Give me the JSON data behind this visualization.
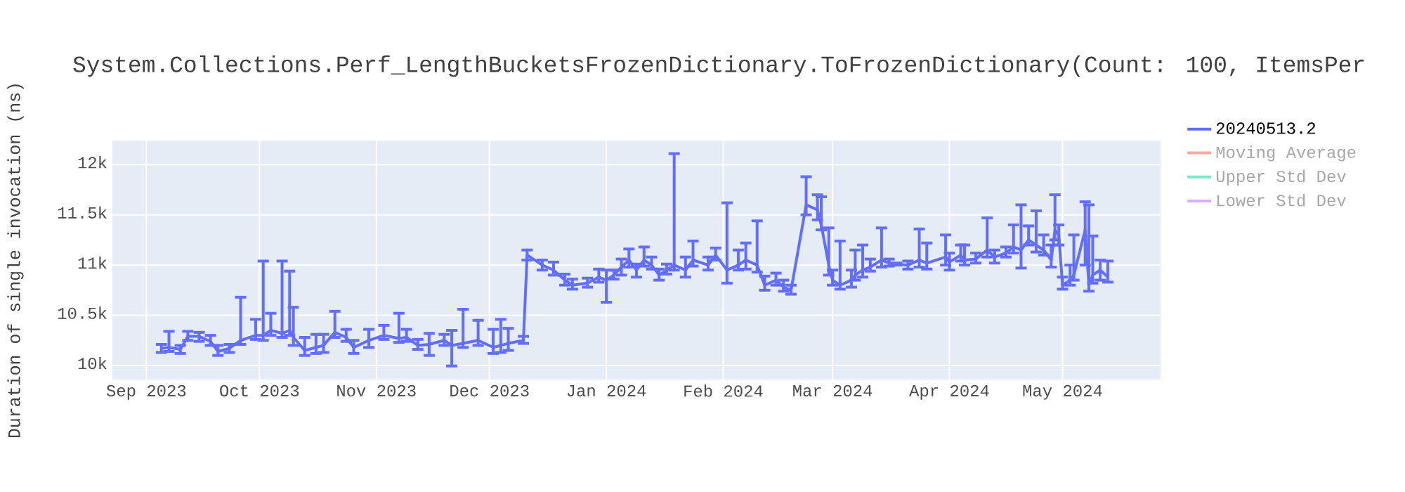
{
  "chart_data": {
    "type": "line",
    "title": "System.Collections.Perf_LengthBucketsFrozenDictionary.ToFrozenDictionary(Count: 100, ItemsPer",
    "ylabel": "Duration of single invocation (ns)",
    "x": [
      "2023-09-05",
      "2023-09-07",
      "2023-09-10",
      "2023-09-12",
      "2023-09-15",
      "2023-09-18",
      "2023-09-20",
      "2023-09-23",
      "2023-09-26",
      "2023-09-30",
      "2023-10-02",
      "2023-10-04",
      "2023-10-07",
      "2023-10-09",
      "2023-10-10",
      "2023-10-13",
      "2023-10-16",
      "2023-10-18",
      "2023-10-21",
      "2023-10-24",
      "2023-10-26",
      "2023-10-30",
      "2023-11-03",
      "2023-11-07",
      "2023-11-09",
      "2023-11-12",
      "2023-11-15",
      "2023-11-19",
      "2023-11-21",
      "2023-11-24",
      "2023-11-28",
      "2023-12-02",
      "2023-12-04",
      "2023-12-06",
      "2023-12-10",
      "2023-12-11",
      "2023-12-15",
      "2023-12-18",
      "2023-12-21",
      "2023-12-23",
      "2023-12-27",
      "2023-12-30",
      "2024-01-01",
      "2024-01-03",
      "2024-01-05",
      "2024-01-07",
      "2024-01-09",
      "2024-01-11",
      "2024-01-13",
      "2024-01-15",
      "2024-01-17",
      "2024-01-19",
      "2024-01-22",
      "2024-01-24",
      "2024-01-28",
      "2024-01-30",
      "2024-02-02",
      "2024-02-05",
      "2024-02-07",
      "2024-02-10",
      "2024-02-12",
      "2024-02-15",
      "2024-02-17",
      "2024-02-19",
      "2024-02-23",
      "2024-02-26",
      "2024-02-27",
      "2024-02-29",
      "2024-03-01",
      "2024-03-03",
      "2024-03-06",
      "2024-03-07",
      "2024-03-09",
      "2024-03-11",
      "2024-03-14",
      "2024-03-16",
      "2024-03-18",
      "2024-03-21",
      "2024-03-24",
      "2024-03-26",
      "2024-03-31",
      "2024-04-01",
      "2024-04-04",
      "2024-04-05",
      "2024-04-08",
      "2024-04-11",
      "2024-04-13",
      "2024-04-16",
      "2024-04-18",
      "2024-04-20",
      "2024-04-22",
      "2024-04-24",
      "2024-04-26",
      "2024-04-28",
      "2024-04-29",
      "2024-04-30",
      "2024-05-01",
      "2024-05-03",
      "2024-05-04",
      "2024-05-07",
      "2024-05-08",
      "2024-05-09",
      "2024-05-11",
      "2024-05-13"
    ],
    "series": [
      {
        "name": "20240513.2",
        "color": "#636efa",
        "values": [
          10170,
          10180,
          10160,
          10290,
          10290,
          10240,
          10140,
          10170,
          10250,
          10300,
          10300,
          10350,
          10320,
          10350,
          10280,
          10150,
          10180,
          10200,
          10330,
          10280,
          10180,
          10250,
          10300,
          10270,
          10280,
          10200,
          10210,
          10250,
          10200,
          10220,
          10250,
          10180,
          10200,
          10220,
          10250,
          11100,
          11000,
          10950,
          10850,
          10800,
          10820,
          10880,
          10850,
          10900,
          10980,
          11050,
          10950,
          11050,
          11000,
          10900,
          10950,
          11000,
          10950,
          11050,
          11000,
          11100,
          10950,
          11000,
          11050,
          11000,
          10800,
          10850,
          10780,
          10750,
          11600,
          11550,
          11400,
          11000,
          10850,
          10800,
          10850,
          10900,
          10950,
          10980,
          11050,
          11020,
          11010,
          11000,
          11050,
          11020,
          11080,
          11030,
          11100,
          11050,
          11060,
          11150,
          11080,
          11120,
          11180,
          11150,
          11250,
          11200,
          11150,
          11050,
          11350,
          11300,
          10800,
          10850,
          10900,
          11350,
          10800,
          10900,
          10950,
          10880
        ],
        "errors": [
          [
            10130,
            10210
          ],
          [
            10140,
            10340
          ],
          [
            10120,
            10200
          ],
          [
            10250,
            10340
          ],
          [
            10240,
            10330
          ],
          [
            10200,
            10300
          ],
          [
            10100,
            10200
          ],
          [
            10130,
            10210
          ],
          [
            10210,
            10680
          ],
          [
            10260,
            10460
          ],
          [
            10250,
            11040
          ],
          [
            10300,
            10520
          ],
          [
            10280,
            11040
          ],
          [
            10300,
            10940
          ],
          [
            10200,
            10580
          ],
          [
            10100,
            10280
          ],
          [
            10120,
            10310
          ],
          [
            10130,
            10310
          ],
          [
            10280,
            10540
          ],
          [
            10240,
            10360
          ],
          [
            10120,
            10250
          ],
          [
            10180,
            10360
          ],
          [
            10260,
            10400
          ],
          [
            10230,
            10520
          ],
          [
            10240,
            10360
          ],
          [
            10160,
            10260
          ],
          [
            10100,
            10320
          ],
          [
            10200,
            10310
          ],
          [
            9995,
            10350
          ],
          [
            10180,
            10560
          ],
          [
            10200,
            10450
          ],
          [
            10120,
            10360
          ],
          [
            10130,
            10460
          ],
          [
            10150,
            10370
          ],
          [
            10220,
            10290
          ],
          [
            11050,
            11150
          ],
          [
            10950,
            11050
          ],
          [
            10900,
            11030
          ],
          [
            10800,
            10910
          ],
          [
            10760,
            10860
          ],
          [
            10780,
            10870
          ],
          [
            10830,
            10960
          ],
          [
            10630,
            10950
          ],
          [
            10860,
            10950
          ],
          [
            10900,
            11060
          ],
          [
            10980,
            11160
          ],
          [
            10880,
            11010
          ],
          [
            10990,
            11180
          ],
          [
            10960,
            11080
          ],
          [
            10850,
            10960
          ],
          [
            10910,
            11010
          ],
          [
            10950,
            12110
          ],
          [
            10880,
            11080
          ],
          [
            10990,
            11240
          ],
          [
            10950,
            11080
          ],
          [
            11050,
            11170
          ],
          [
            10820,
            11620
          ],
          [
            10950,
            11150
          ],
          [
            10960,
            11220
          ],
          [
            10930,
            11440
          ],
          [
            10750,
            10890
          ],
          [
            10800,
            10920
          ],
          [
            10740,
            10850
          ],
          [
            10710,
            10800
          ],
          [
            11500,
            11880
          ],
          [
            11450,
            11700
          ],
          [
            11350,
            11680
          ],
          [
            10900,
            11370
          ],
          [
            10800,
            10950
          ],
          [
            10760,
            11240
          ],
          [
            10780,
            10950
          ],
          [
            10850,
            11150
          ],
          [
            10880,
            11200
          ],
          [
            10940,
            11060
          ],
          [
            10980,
            11370
          ],
          [
            10990,
            11060
          ],
          [
            11000,
            11020
          ],
          [
            10960,
            11040
          ],
          [
            10980,
            11360
          ],
          [
            10960,
            11220
          ],
          [
            11000,
            11300
          ],
          [
            10950,
            11120
          ],
          [
            11040,
            11200
          ],
          [
            11000,
            11200
          ],
          [
            11020,
            11120
          ],
          [
            11080,
            11470
          ],
          [
            11020,
            11150
          ],
          [
            11080,
            11180
          ],
          [
            11120,
            11400
          ],
          [
            10970,
            11600
          ],
          [
            11200,
            11390
          ],
          [
            11130,
            11540
          ],
          [
            11100,
            11300
          ],
          [
            10980,
            11200
          ],
          [
            11250,
            11700
          ],
          [
            11200,
            11400
          ],
          [
            10760,
            10880
          ],
          [
            10800,
            11000
          ],
          [
            10850,
            11300
          ],
          [
            11000,
            11630
          ],
          [
            10740,
            11600
          ],
          [
            10820,
            11290
          ],
          [
            10850,
            11050
          ],
          [
            10830,
            11040
          ]
        ]
      },
      {
        "name": "Moving Average",
        "color": "#f7aa9d",
        "values": [
          null,
          null,
          null,
          null,
          null,
          null,
          null,
          null,
          null,
          null,
          null,
          null,
          null,
          null,
          null,
          null,
          null,
          null,
          null,
          null,
          null,
          null,
          null,
          null,
          null,
          null,
          null,
          null,
          null,
          null,
          null,
          null,
          null,
          null,
          null,
          null,
          null,
          null,
          null,
          null,
          null,
          null,
          null,
          null,
          null,
          null,
          null,
          null,
          null,
          null,
          null,
          null,
          null,
          null,
          null,
          null,
          null,
          null,
          null,
          null,
          null,
          null,
          null,
          null,
          null,
          null,
          null,
          null,
          null,
          null,
          null,
          null,
          null,
          null,
          null,
          null,
          null,
          null,
          null,
          null,
          null,
          null,
          null,
          null,
          null,
          null,
          null,
          null,
          null,
          null,
          null,
          null,
          null,
          null,
          null,
          null,
          null,
          null,
          null,
          null,
          null,
          null,
          null,
          null
        ]
      },
      {
        "name": "Upper Std Dev",
        "color": "#80e5ca",
        "values": [
          null,
          null,
          null,
          null,
          null,
          null,
          null,
          null,
          null,
          null,
          null,
          null,
          null,
          null,
          null,
          null,
          null,
          null,
          null,
          null,
          null,
          null,
          null,
          null,
          null,
          null,
          null,
          null,
          null,
          null,
          null,
          null,
          null,
          null,
          null,
          null,
          null,
          null,
          null,
          null,
          null,
          null,
          null,
          null,
          null,
          null,
          null,
          null,
          null,
          null,
          null,
          null,
          null,
          null,
          null,
          null,
          null,
          null,
          null,
          null,
          null,
          null,
          null,
          null,
          null,
          null,
          null,
          null,
          null,
          null,
          null,
          null,
          null,
          null,
          null,
          null,
          null,
          null,
          null,
          null,
          null,
          null,
          null,
          null,
          null,
          null,
          null,
          null,
          null,
          null,
          null,
          null,
          null,
          null,
          null,
          null,
          null,
          null,
          null,
          null,
          null,
          null,
          null,
          null
        ]
      },
      {
        "name": "Lower Std Dev",
        "color": "#d5b1fc",
        "values": [
          null,
          null,
          null,
          null,
          null,
          null,
          null,
          null,
          null,
          null,
          null,
          null,
          null,
          null,
          null,
          null,
          null,
          null,
          null,
          null,
          null,
          null,
          null,
          null,
          null,
          null,
          null,
          null,
          null,
          null,
          null,
          null,
          null,
          null,
          null,
          null,
          null,
          null,
          null,
          null,
          null,
          null,
          null,
          null,
          null,
          null,
          null,
          null,
          null,
          null,
          null,
          null,
          null,
          null,
          null,
          null,
          null,
          null,
          null,
          null,
          null,
          null,
          null,
          null,
          null,
          null,
          null,
          null,
          null,
          null,
          null,
          null,
          null,
          null,
          null,
          null,
          null,
          null,
          null,
          null,
          null,
          null,
          null,
          null,
          null,
          null,
          null,
          null,
          null,
          null,
          null,
          null,
          null,
          null,
          null,
          null,
          null,
          null,
          null,
          null,
          null,
          null,
          null,
          null
        ]
      }
    ],
    "xlim": [
      "2023-08-23",
      "2024-05-27"
    ],
    "ylim": [
      9860,
      12240
    ],
    "xticks": [
      {
        "value": "2023-09-01",
        "label": "Sep 2023"
      },
      {
        "value": "2023-10-01",
        "label": "Oct 2023"
      },
      {
        "value": "2023-11-01",
        "label": "Nov 2023"
      },
      {
        "value": "2023-12-01",
        "label": "Dec 2023"
      },
      {
        "value": "2024-01-01",
        "label": "Jan 2024"
      },
      {
        "value": "2024-02-01",
        "label": "Feb 2024"
      },
      {
        "value": "2024-03-01",
        "label": "Mar 2024"
      },
      {
        "value": "2024-04-01",
        "label": "Apr 2024"
      },
      {
        "value": "2024-05-01",
        "label": "May 2024"
      }
    ],
    "yticks": [
      {
        "value": 10000,
        "label": "10k"
      },
      {
        "value": 10500,
        "label": "10.5k"
      },
      {
        "value": 11000,
        "label": "11k"
      },
      {
        "value": 11500,
        "label": "11.5k"
      },
      {
        "value": 12000,
        "label": "12k"
      }
    ],
    "grid": true,
    "legend": "right"
  }
}
